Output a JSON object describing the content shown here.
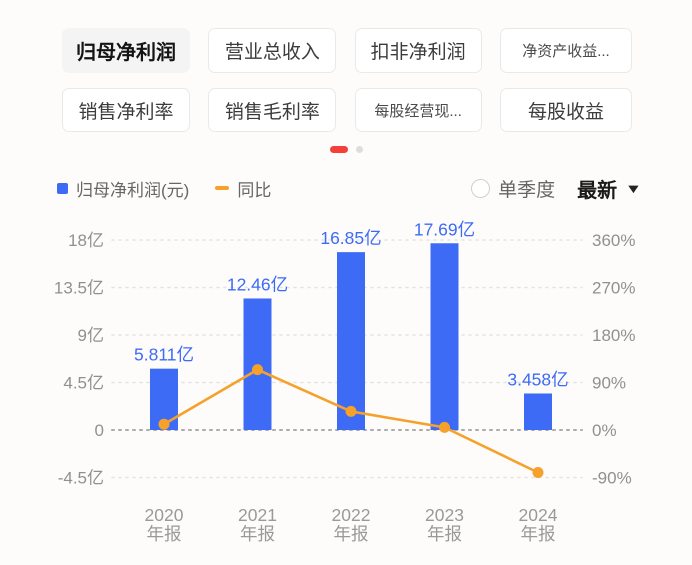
{
  "colors": {
    "bar_blue": "#3d6bf5",
    "line_orange": "#f5a12b",
    "pager_red": "#f4403a",
    "grid_gray": "#e3e3e3",
    "zero_line_gray": "#ababab",
    "axis_text_gray": "#909090",
    "xlabel_gray": "#999999"
  },
  "metric_tabs": {
    "row1": [
      {
        "label": "归母净利润",
        "selected": true,
        "truncated": false
      },
      {
        "label": "营业总收入",
        "selected": false,
        "truncated": false
      },
      {
        "label": "扣非净利润",
        "selected": false,
        "truncated": false
      },
      {
        "label": "净资产收益...",
        "selected": false,
        "truncated": true
      }
    ],
    "row2": [
      {
        "label": "销售净利率",
        "selected": false,
        "truncated": false
      },
      {
        "label": "销售毛利率",
        "selected": false,
        "truncated": false
      },
      {
        "label": "每股经营现...",
        "selected": false,
        "truncated": true
      },
      {
        "label": "每股收益",
        "selected": false,
        "truncated": false
      }
    ]
  },
  "pagination": {
    "pages": 2,
    "active_page": 1
  },
  "legend": {
    "bar_label": "归母净利润(元)",
    "line_label": "同比"
  },
  "controls": {
    "radio_label": "单季度",
    "radio_checked": false,
    "dropdown_label": "最新",
    "dropdown_caret": "▼"
  },
  "chart_data": {
    "type": "bar+line",
    "categories": [
      [
        "2020",
        "年报"
      ],
      [
        "2021",
        "年报"
      ],
      [
        "2022",
        "年报"
      ],
      [
        "2023",
        "年报"
      ],
      [
        "2024",
        "年报"
      ]
    ],
    "series": [
      {
        "name": "归母净利润(元)",
        "type": "bar",
        "axis": "left",
        "unit": "亿",
        "values": [
          5.811,
          12.46,
          16.85,
          17.69,
          3.458
        ],
        "value_labels": [
          "5.811亿",
          "12.46亿",
          "16.85亿",
          "17.69亿",
          "3.458亿"
        ],
        "color": "#3d6bf5"
      },
      {
        "name": "同比",
        "type": "line",
        "axis": "right",
        "unit": "%",
        "values": [
          11,
          114.4,
          35.2,
          5.0,
          -80.5
        ],
        "color": "#f5a12b"
      }
    ],
    "left_axis": {
      "tick_labels": [
        "18亿",
        "13.5亿",
        "9亿",
        "4.5亿",
        "0",
        "-4.5亿"
      ],
      "tick_values": [
        18,
        13.5,
        9,
        4.5,
        0,
        -4.5
      ],
      "range": [
        -4.5,
        18
      ]
    },
    "right_axis": {
      "tick_labels": [
        "360%",
        "270%",
        "180%",
        "90%",
        "0%",
        "-90%"
      ],
      "tick_values": [
        360,
        270,
        180,
        90,
        0,
        -90
      ],
      "range": [
        -90,
        360
      ]
    },
    "grid": "dotted-horizontal",
    "legend_position": "top-left",
    "title": ""
  }
}
